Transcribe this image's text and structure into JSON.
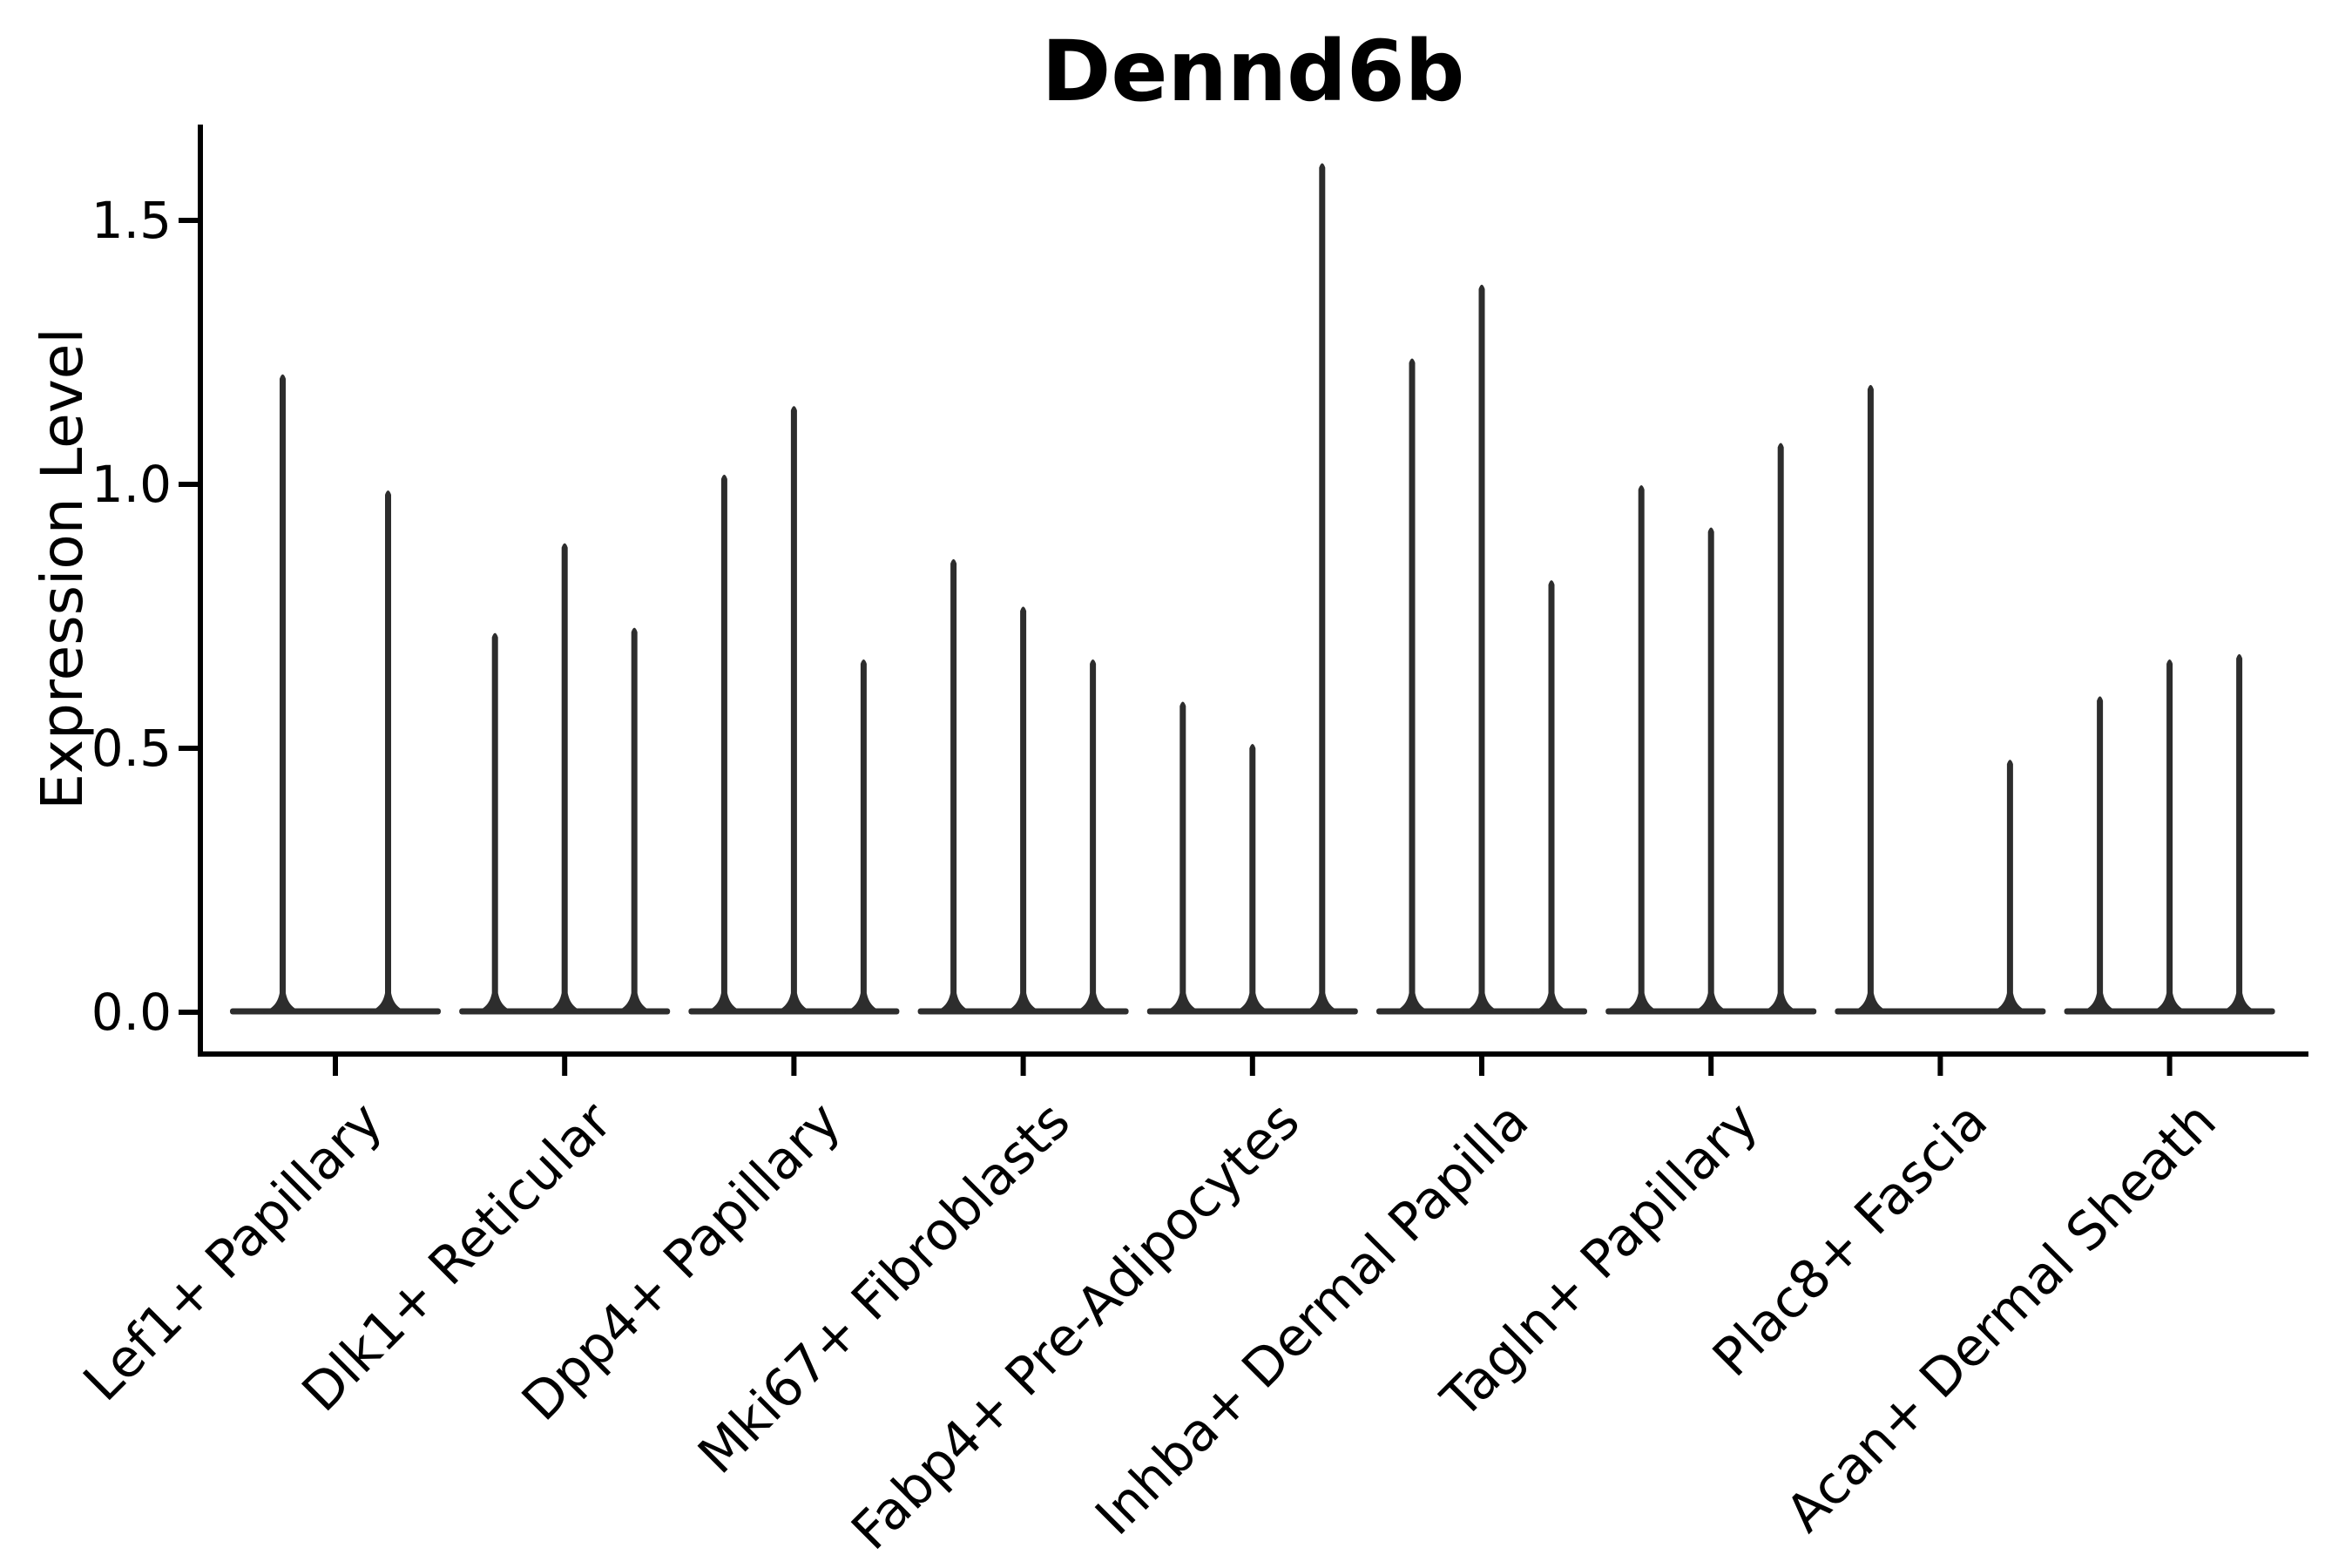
{
  "chart_data": {
    "type": "violin",
    "title": "Dennd6b",
    "xlabel": "",
    "ylabel": "Expression Level",
    "ylim": [
      0,
      1.68
    ],
    "yticks": [
      {
        "label": "0.0",
        "value": 0.0
      },
      {
        "label": "0.5",
        "value": 0.5
      },
      {
        "label": "1.0",
        "value": 1.0
      },
      {
        "label": "1.5",
        "value": 1.5
      }
    ],
    "categories": [
      "Lef1+ Papillary",
      "Dlk1+ Reticular",
      "Dpp4+ Papillary",
      "Mki67+ Fibroblasts",
      "Fabp4+ Pre-Adipocytes",
      "Inhba+ Dermal Papilla",
      "Tagln+ Papillary",
      "Plac8+ Fascia",
      "Acan+ Dermal Sheath"
    ],
    "groups": [
      {
        "category": "Lef1+ Papillary",
        "violin_max": [
          1.21,
          0.99
        ]
      },
      {
        "category": "Dlk1+ Reticular",
        "violin_max": [
          0.72,
          0.89,
          0.73
        ]
      },
      {
        "category": "Dpp4+ Papillary",
        "violin_max": [
          1.02,
          1.15,
          0.67
        ]
      },
      {
        "category": "Mki67+ Fibroblasts",
        "violin_max": [
          0.86,
          0.77,
          0.67
        ]
      },
      {
        "category": "Fabp4+ Pre-Adipocytes",
        "violin_max": [
          0.59,
          0.51,
          1.61
        ]
      },
      {
        "category": "Inhba+ Dermal Papilla",
        "violin_max": [
          1.24,
          1.38,
          0.82
        ]
      },
      {
        "category": "Tagln+ Papillary",
        "violin_max": [
          1.0,
          0.92,
          1.08
        ]
      },
      {
        "category": "Plac8+ Fascia",
        "violin_max": [
          1.19,
          0.0,
          0.48
        ]
      },
      {
        "category": "Acan+ Dermal Sheath",
        "violin_max": [
          0.6,
          0.67,
          0.68
        ]
      }
    ],
    "notes": "Each violin is a near-zero-width density spike rising from a flat base at 0; all distributions are concentrated at 0.",
    "grid": false,
    "legend": null,
    "colors": {
      "violin": "#2d2d2d",
      "axis": "#000000",
      "background": "#ffffff"
    }
  }
}
